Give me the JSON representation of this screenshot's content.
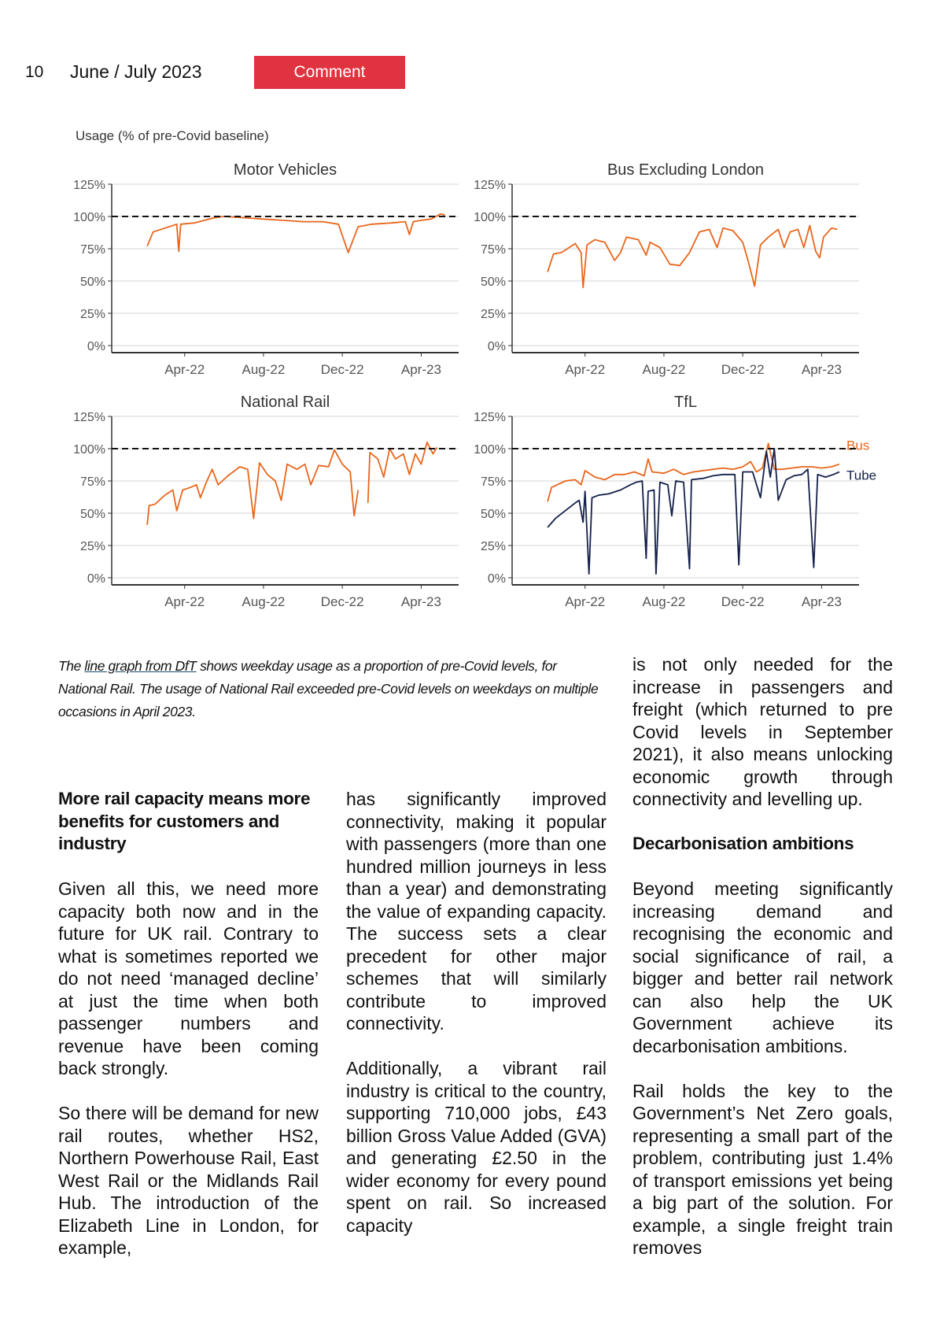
{
  "header": {
    "page_number": "10",
    "issue": "June / July 2023",
    "section_label": "Comment",
    "section_color": "#e03340"
  },
  "chart_data": [
    {
      "type": "line",
      "title": "Motor Vehicles",
      "ylabel": "Usage (% of pre-Covid baseline)",
      "ylim": [
        0,
        125
      ],
      "yticks": [
        "0%",
        "25%",
        "50%",
        "75%",
        "100%",
        "125%"
      ],
      "x_unit": "months since Jan-22",
      "xlim": [
        -0.7,
        16.9
      ],
      "xticks": [
        {
          "x": 3,
          "label": "Apr-22"
        },
        {
          "x": 7,
          "label": "Aug-22"
        },
        {
          "x": 11,
          "label": "Dec-22"
        },
        {
          "x": 15,
          "label": "Apr-23"
        }
      ],
      "reference_line": 100,
      "series": [
        {
          "name": "Motor Vehicles",
          "color": "#e8661c",
          "points": [
            [
              1.1,
              77
            ],
            [
              1.4,
              88
            ],
            [
              2,
              91
            ],
            [
              2.6,
              94
            ],
            [
              2.7,
              73
            ],
            [
              2.8,
              94
            ],
            [
              3.5,
              95
            ],
            [
              4,
              97
            ],
            [
              4.5,
              99
            ],
            [
              5,
              100
            ],
            [
              6,
              99
            ],
            [
              7,
              98
            ],
            [
              8,
              97
            ],
            [
              9,
              96
            ],
            [
              10,
              96
            ],
            [
              10.8,
              94
            ],
            [
              11.3,
              72
            ],
            [
              11.8,
              92
            ],
            [
              12.5,
              94
            ],
            [
              13.5,
              95
            ],
            [
              14.2,
              96
            ],
            [
              14.4,
              86
            ],
            [
              14.6,
              96
            ],
            [
              15,
              97
            ],
            [
              15.5,
              98
            ],
            [
              16,
              102
            ],
            [
              16.2,
              101
            ]
          ]
        }
      ]
    },
    {
      "type": "line",
      "title": "Bus Excluding London",
      "ylim": [
        0,
        125
      ],
      "yticks": [
        "0%",
        "25%",
        "50%",
        "75%",
        "100%",
        "125%"
      ],
      "xlim": [
        -0.7,
        16.9
      ],
      "xticks": [
        {
          "x": 3,
          "label": "Apr-22"
        },
        {
          "x": 7,
          "label": "Aug-22"
        },
        {
          "x": 11,
          "label": "Dec-22"
        },
        {
          "x": 15,
          "label": "Apr-23"
        }
      ],
      "reference_line": 100,
      "series": [
        {
          "name": "Bus Excluding London",
          "color": "#e8661c",
          "points": [
            [
              1.1,
              57
            ],
            [
              1.4,
              71
            ],
            [
              1.8,
              72
            ],
            [
              2.2,
              76
            ],
            [
              2.5,
              79
            ],
            [
              2.8,
              72
            ],
            [
              2.9,
              45
            ],
            [
              3.1,
              78
            ],
            [
              3.5,
              82
            ],
            [
              4,
              80
            ],
            [
              4.5,
              66
            ],
            [
              4.8,
              72
            ],
            [
              5.1,
              84
            ],
            [
              5.7,
              82
            ],
            [
              6.1,
              70
            ],
            [
              6.3,
              80
            ],
            [
              6.8,
              76
            ],
            [
              7.3,
              63
            ],
            [
              7.8,
              62
            ],
            [
              8.3,
              72
            ],
            [
              8.8,
              88
            ],
            [
              9.3,
              90
            ],
            [
              9.7,
              76
            ],
            [
              10,
              91
            ],
            [
              10.5,
              89
            ],
            [
              11,
              80
            ],
            [
              11.3,
              64
            ],
            [
              11.6,
              46
            ],
            [
              11.9,
              78
            ],
            [
              12.3,
              84
            ],
            [
              12.8,
              90
            ],
            [
              13.1,
              76
            ],
            [
              13.4,
              88
            ],
            [
              13.8,
              90
            ],
            [
              14.1,
              76
            ],
            [
              14.4,
              93
            ],
            [
              14.7,
              73
            ],
            [
              14.9,
              68
            ],
            [
              15.1,
              84
            ],
            [
              15.5,
              91
            ],
            [
              15.8,
              90
            ]
          ]
        }
      ]
    },
    {
      "type": "line",
      "title": "National Rail",
      "ylim": [
        0,
        125
      ],
      "yticks": [
        "0%",
        "25%",
        "50%",
        "75%",
        "100%",
        "125%"
      ],
      "xlim": [
        -0.7,
        16.9
      ],
      "xticks": [
        {
          "x": 3,
          "label": "Apr-22"
        },
        {
          "x": 7,
          "label": "Aug-22"
        },
        {
          "x": 11,
          "label": "Dec-22"
        },
        {
          "x": 15,
          "label": "Apr-23"
        }
      ],
      "reference_line": 100,
      "series": [
        {
          "name": "National Rail",
          "color": "#e8661c",
          "points": [
            [
              1.1,
              41
            ],
            [
              1.2,
              56
            ],
            [
              1.5,
              57
            ],
            [
              2,
              64
            ],
            [
              2.4,
              68
            ],
            [
              2.6,
              52
            ],
            [
              2.9,
              68
            ],
            [
              3.3,
              70
            ],
            [
              3.6,
              72
            ],
            [
              3.8,
              62
            ],
            [
              4.1,
              74
            ],
            [
              4.4,
              84
            ],
            [
              4.7,
              72
            ],
            [
              5.2,
              79
            ],
            [
              5.8,
              86
            ],
            [
              6.2,
              84
            ],
            [
              6.5,
              46
            ],
            [
              6.8,
              89
            ],
            [
              7.2,
              80
            ],
            [
              7.6,
              75
            ],
            [
              7.9,
              60
            ],
            [
              8.2,
              88
            ],
            [
              8.7,
              84
            ],
            [
              9.1,
              88
            ],
            [
              9.4,
              72
            ],
            [
              9.8,
              87
            ],
            [
              10.3,
              86
            ],
            [
              10.6,
              99
            ],
            [
              11,
              88
            ],
            [
              11.4,
              82
            ],
            [
              11.6,
              48
            ],
            [
              11.8,
              68
            ],
            null,
            [
              12.3,
              58
            ],
            [
              12.4,
              97
            ],
            [
              12.8,
              92
            ],
            [
              13.1,
              78
            ],
            [
              13.4,
              100
            ],
            [
              13.7,
              92
            ],
            [
              14.1,
              96
            ],
            [
              14.4,
              80
            ],
            [
              14.7,
              96
            ],
            [
              15,
              88
            ],
            [
              15.3,
              105
            ],
            [
              15.6,
              96
            ],
            [
              15.8,
              101
            ]
          ]
        }
      ]
    },
    {
      "type": "line",
      "title": "TfL",
      "ylim": [
        0,
        125
      ],
      "yticks": [
        "0%",
        "25%",
        "50%",
        "75%",
        "100%",
        "125%"
      ],
      "xlim": [
        -0.7,
        16.9
      ],
      "xticks": [
        {
          "x": 3,
          "label": "Apr-22"
        },
        {
          "x": 7,
          "label": "Aug-22"
        },
        {
          "x": 11,
          "label": "Dec-22"
        },
        {
          "x": 15,
          "label": "Apr-23"
        }
      ],
      "reference_line": 100,
      "series": [
        {
          "name": "Bus",
          "color": "#e8661c",
          "points": [
            [
              1.1,
              59
            ],
            [
              1.3,
              70
            ],
            [
              2,
              75
            ],
            [
              2.5,
              76
            ],
            [
              2.8,
              72
            ],
            [
              3,
              83
            ],
            [
              3.5,
              78
            ],
            [
              4,
              76
            ],
            [
              4.5,
              80
            ],
            [
              5,
              80
            ],
            [
              5.5,
              82
            ],
            [
              6,
              79
            ],
            [
              6.2,
              92
            ],
            [
              6.4,
              82
            ],
            [
              7,
              81
            ],
            [
              7.5,
              84
            ],
            [
              8,
              80
            ],
            [
              8.5,
              82
            ],
            [
              9,
              83
            ],
            [
              9.5,
              84
            ],
            [
              10,
              85
            ],
            [
              10.5,
              84
            ],
            [
              11,
              86
            ],
            [
              11.4,
              90
            ],
            [
              11.7,
              82
            ],
            [
              12,
              85
            ],
            [
              12.3,
              104
            ],
            [
              12.6,
              84
            ],
            [
              13,
              84
            ],
            [
              13.5,
              85
            ],
            [
              14,
              86
            ],
            [
              14.5,
              86
            ],
            [
              15,
              85
            ],
            [
              15.5,
              86
            ],
            [
              15.9,
              88
            ]
          ]
        },
        {
          "name": "Tube",
          "color": "#14204a",
          "points": [
            [
              1.1,
              39
            ],
            [
              1.5,
              46
            ],
            [
              2,
              52
            ],
            [
              2.5,
              58
            ],
            [
              2.7,
              60
            ],
            [
              2.9,
              43
            ],
            [
              3,
              67
            ],
            [
              3.2,
              3
            ],
            [
              3.35,
              62
            ],
            [
              3.7,
              64
            ],
            [
              4.2,
              65
            ],
            [
              4.8,
              68
            ],
            [
              5.3,
              72
            ],
            [
              5.6,
              74
            ],
            [
              5.9,
              75
            ],
            [
              6.1,
              15
            ],
            [
              6.2,
              67
            ],
            [
              6.5,
              68
            ],
            [
              6.6,
              3
            ],
            [
              6.8,
              74
            ],
            [
              7.2,
              72
            ],
            [
              7.4,
              48
            ],
            [
              7.6,
              75
            ],
            [
              8,
              74
            ],
            [
              8.3,
              7
            ],
            [
              8.4,
              76
            ],
            [
              9,
              77
            ],
            [
              9.5,
              79
            ],
            [
              10,
              80
            ],
            [
              10.6,
              80
            ],
            [
              10.8,
              10
            ],
            [
              11,
              82
            ],
            [
              11.5,
              82
            ],
            [
              11.9,
              62
            ],
            [
              12.2,
              98
            ],
            [
              12.4,
              78
            ],
            [
              12.6,
              100
            ],
            [
              12.8,
              60
            ],
            [
              13.2,
              76
            ],
            [
              13.6,
              79
            ],
            [
              14,
              80
            ],
            [
              14.3,
              84
            ],
            [
              14.6,
              8
            ],
            [
              14.8,
              80
            ],
            [
              15.2,
              78
            ],
            [
              15.6,
              80
            ],
            [
              15.9,
              82
            ]
          ]
        }
      ]
    }
  ],
  "caption": {
    "prefix": "The ",
    "link": "line graph from DfT",
    "rest": " shows weekday usage as a proportion of pre-Covid levels, for National Rail. The usage of National Rail exceeded pre-Covid levels on weekdays on multiple occasions in April 2023."
  },
  "article": {
    "heading1": "More rail capacity means more benefits for customers and industry",
    "p1": "Given all this, we need more capacity both now and in the future for UK rail. Contrary to what is sometimes reported we do not need ‘managed decline’ at just the time when both passenger numbers and revenue have been coming back strongly.",
    "p2a": "So there will be demand for new rail routes, whether HS2, Northern Powerhouse Rail, East West Rail or the Midlands Rail Hub. The introduction of the Elizabeth Line in London, for example,",
    "p2b": "has significantly improved connectivity, making it popular with passengers (more than one hundred million journeys in less than a year) and demonstrating the value of expanding capacity. The success sets a clear precedent for other major schemes that will similarly contribute to improved connectivity.",
    "p3a": "Additionally, a vibrant rail industry is critical to the country, supporting 710,000 jobs, £43 billion Gross Value Added (GVA) and generating £2.50 in the wider economy for every pound spent on rail. So increased capacity",
    "p3b": "is not only needed for the increase in passengers and freight (which returned to pre Covid levels in September 2021), it also means unlocking economic growth through connectivity and levelling up.",
    "heading2": "Decarbonisation ambitions",
    "p4": "Beyond meeting significantly increasing demand and recognising the economic and social significance of rail, a bigger and better rail network can also help the UK Government achieve its decarbonisation ambitions.",
    "p5": "Rail holds the key to the Government’s Net Zero goals, representing a small part of the problem, contributing just 1.4% of transport emissions yet being a big part of the solution. For example, a single freight train removes"
  }
}
